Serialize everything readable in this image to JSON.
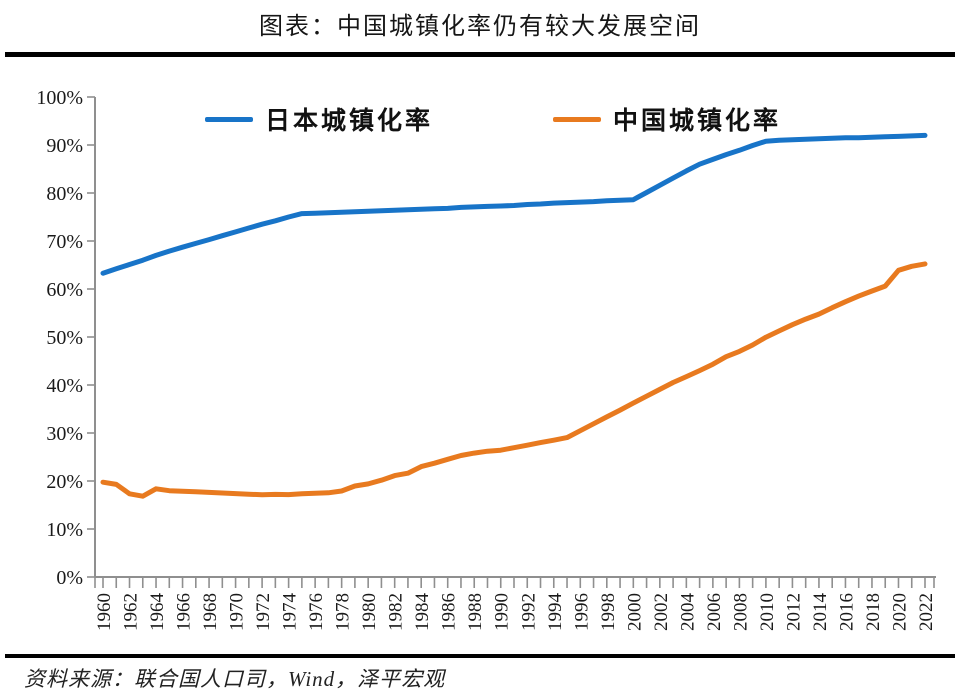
{
  "header": {
    "title": "图表：中国城镇化率仍有较大发展空间"
  },
  "footer": {
    "source": "资料来源：联合国人口司，Wind，泽平宏观"
  },
  "axis_style": {
    "line_color": "#8f8f8f",
    "label_color": "#1a1a1a"
  },
  "chart_data": {
    "type": "line",
    "title": "图表：中国城镇化率仍有较大发展空间",
    "xlabel": "",
    "ylabel": "",
    "ylim": [
      0,
      100
    ],
    "ytick_step": 10,
    "ytick_suffix": "%",
    "xtick_label_every": 2,
    "grid": false,
    "legend_position": "top-inside",
    "x": [
      1960,
      1961,
      1962,
      1963,
      1964,
      1965,
      1966,
      1967,
      1968,
      1969,
      1970,
      1971,
      1972,
      1973,
      1974,
      1975,
      1976,
      1977,
      1978,
      1979,
      1980,
      1981,
      1982,
      1983,
      1984,
      1985,
      1986,
      1987,
      1988,
      1989,
      1990,
      1991,
      1992,
      1993,
      1994,
      1995,
      1996,
      1997,
      1998,
      1999,
      2000,
      2001,
      2002,
      2003,
      2004,
      2005,
      2006,
      2007,
      2008,
      2009,
      2010,
      2011,
      2012,
      2013,
      2014,
      2015,
      2016,
      2017,
      2018,
      2019,
      2020,
      2021,
      2022
    ],
    "series": [
      {
        "name": "日本城镇化率",
        "color": "#1874C8",
        "values": [
          63.3,
          64.2,
          65.1,
          66.0,
          67.0,
          67.9,
          68.7,
          69.5,
          70.3,
          71.1,
          71.9,
          72.7,
          73.5,
          74.2,
          75.0,
          75.7,
          75.8,
          75.9,
          76.0,
          76.1,
          76.2,
          76.3,
          76.4,
          76.5,
          76.6,
          76.7,
          76.8,
          77.0,
          77.1,
          77.2,
          77.3,
          77.4,
          77.6,
          77.7,
          77.9,
          78.0,
          78.1,
          78.2,
          78.4,
          78.5,
          78.6,
          80.1,
          81.6,
          83.1,
          84.6,
          86.0,
          87.0,
          88.0,
          88.9,
          89.9,
          90.8,
          91.0,
          91.1,
          91.2,
          91.3,
          91.4,
          91.5,
          91.5,
          91.6,
          91.7,
          91.8,
          91.9,
          92.0
        ]
      },
      {
        "name": "中国城镇化率",
        "color": "#E87A1F",
        "values": [
          19.75,
          19.29,
          17.33,
          16.84,
          18.37,
          17.98,
          17.86,
          17.74,
          17.62,
          17.5,
          17.38,
          17.26,
          17.13,
          17.2,
          17.16,
          17.34,
          17.44,
          17.55,
          17.92,
          18.96,
          19.39,
          20.16,
          21.13,
          21.62,
          23.01,
          23.71,
          24.52,
          25.32,
          25.81,
          26.21,
          26.41,
          26.94,
          27.46,
          27.99,
          28.51,
          29.04,
          30.48,
          31.91,
          33.35,
          34.78,
          36.22,
          37.66,
          39.09,
          40.53,
          41.76,
          42.99,
          44.34,
          45.89,
          46.99,
          48.34,
          49.95,
          51.27,
          52.57,
          53.73,
          54.77,
          56.1,
          57.35,
          58.52,
          59.58,
          60.6,
          63.89,
          64.72,
          65.22
        ]
      }
    ]
  }
}
